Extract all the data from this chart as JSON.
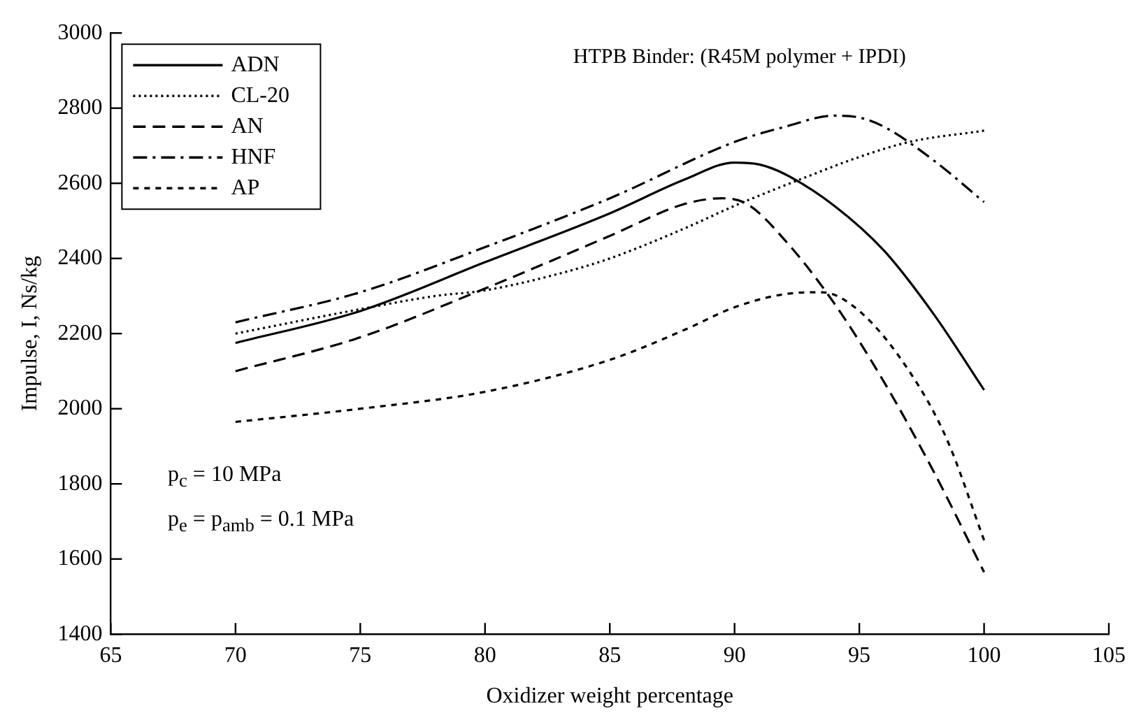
{
  "chart_data": {
    "type": "line",
    "title": "HTPB Binder: (R45M polymer + IPDI)",
    "xlabel": "Oxidizer weight percentage",
    "ylabel": "Impulse, I, Ns/kg",
    "xlim": [
      65,
      105
    ],
    "xticks": [
      65,
      70,
      75,
      80,
      85,
      90,
      95,
      100,
      105
    ],
    "ylim": [
      1400,
      3000
    ],
    "yticks": [
      1400,
      1600,
      1800,
      2000,
      2200,
      2400,
      2600,
      2800,
      3000
    ],
    "grid": false,
    "legend": "top left",
    "marker": "none",
    "annotations": [
      "p$_{c}$ = 10 MPa",
      "p$_{e}$ = p$_{amb}$ = 0.1 MPa"
    ],
    "series": [
      {
        "name": "ADN",
        "color": "#000000",
        "line_style": "solid",
        "x": [
          70,
          75,
          80,
          85,
          88,
          90,
          91,
          92,
          94,
          96,
          98,
          100
        ],
        "values": [
          2175,
          2260,
          2390,
          2520,
          2610,
          2655,
          2650,
          2625,
          2540,
          2420,
          2250,
          2050
        ]
      },
      {
        "name": "CL-20",
        "color": "#000000",
        "line_style": "dotted",
        "x": [
          70,
          75,
          78,
          80,
          83,
          85,
          88,
          90,
          93,
          95,
          97,
          100
        ],
        "values": [
          2200,
          2265,
          2300,
          2315,
          2360,
          2400,
          2480,
          2540,
          2620,
          2670,
          2710,
          2740
        ]
      },
      {
        "name": "AN",
        "color": "#000000",
        "line_style": "dashed",
        "x": [
          70,
          75,
          80,
          85,
          88,
          89.5,
          90.5,
          92,
          94,
          96,
          98,
          100
        ],
        "values": [
          2100,
          2190,
          2320,
          2460,
          2545,
          2560,
          2545,
          2450,
          2280,
          2070,
          1830,
          1565
        ]
      },
      {
        "name": "HNF",
        "color": "#000000",
        "line_style": "dashdot",
        "x": [
          70,
          75,
          80,
          85,
          90,
          92,
          94,
          95,
          96,
          98,
          100
        ],
        "values": [
          2230,
          2310,
          2430,
          2560,
          2710,
          2750,
          2780,
          2775,
          2750,
          2660,
          2550
        ]
      },
      {
        "name": "AP",
        "color": "#000000",
        "line_style": "shortdash",
        "x": [
          70,
          75,
          80,
          85,
          88,
          90,
          92,
          93.5,
          95,
          97,
          98.5,
          100
        ],
        "values": [
          1965,
          2000,
          2045,
          2130,
          2210,
          2270,
          2305,
          2310,
          2260,
          2100,
          1920,
          1650
        ]
      }
    ]
  }
}
